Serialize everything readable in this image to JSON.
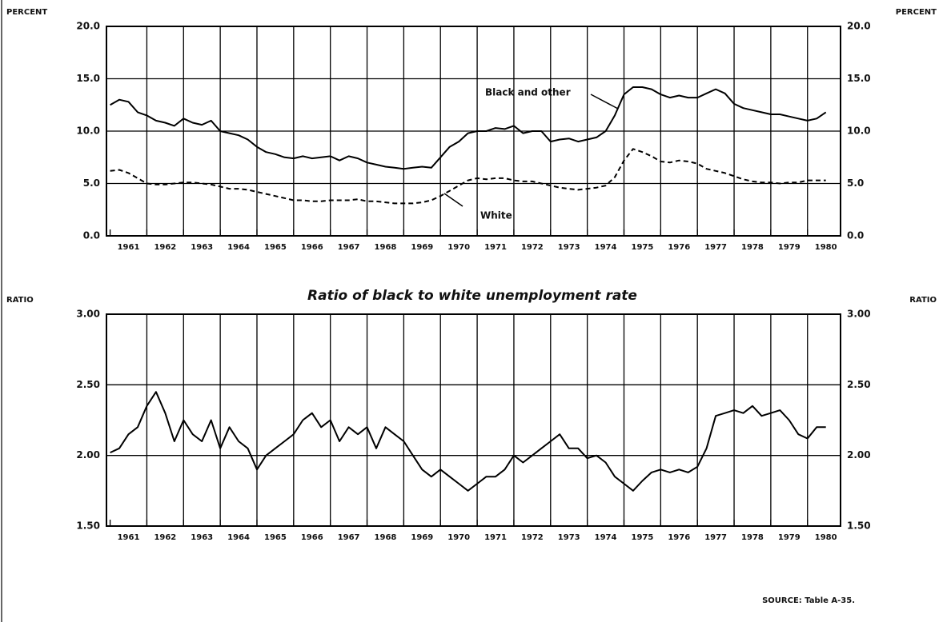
{
  "chart_data": [
    {
      "type": "line",
      "y_label": "PERCENT",
      "annotations": [
        "Black and other",
        "White"
      ],
      "xlim": [
        1960.9,
        1980.9
      ],
      "xticks": [
        {
          "value": 1961,
          "label": "1961"
        },
        {
          "value": 1962,
          "label": "1962"
        },
        {
          "value": 1963,
          "label": "1963"
        },
        {
          "value": 1964,
          "label": "1964"
        },
        {
          "value": 1965,
          "label": "1965"
        },
        {
          "value": 1966,
          "label": "1966"
        },
        {
          "value": 1967,
          "label": "1967"
        },
        {
          "value": 1968,
          "label": "1968"
        },
        {
          "value": 1969,
          "label": "1969"
        },
        {
          "value": 1970,
          "label": "1970"
        },
        {
          "value": 1971,
          "label": "1971"
        },
        {
          "value": 1972,
          "label": "1972"
        },
        {
          "value": 1973,
          "label": "1973"
        },
        {
          "value": 1974,
          "label": "1974"
        },
        {
          "value": 1975,
          "label": "1975"
        },
        {
          "value": 1976,
          "label": "1976"
        },
        {
          "value": 1977,
          "label": "1977"
        },
        {
          "value": 1978,
          "label": "1978"
        },
        {
          "value": 1979,
          "label": "1979"
        },
        {
          "value": 1980,
          "label": "1980"
        }
      ],
      "ylim": [
        0,
        20
      ],
      "yticks": [
        {
          "value": 0,
          "label": "0.0"
        },
        {
          "value": 5,
          "label": "5.0"
        },
        {
          "value": 10,
          "label": "10.0"
        },
        {
          "value": 15,
          "label": "15.0"
        },
        {
          "value": 20,
          "label": "20.0"
        }
      ],
      "grid": true,
      "x": [
        1961,
        1961.25,
        1961.5,
        1961.75,
        1962,
        1962.25,
        1962.5,
        1962.75,
        1963,
        1963.25,
        1963.5,
        1963.75,
        1964,
        1964.25,
        1964.5,
        1964.75,
        1965,
        1965.25,
        1965.5,
        1965.75,
        1966,
        1966.25,
        1966.5,
        1966.75,
        1967,
        1967.25,
        1967.5,
        1967.75,
        1968,
        1968.25,
        1968.5,
        1968.75,
        1969,
        1969.25,
        1969.5,
        1969.75,
        1970,
        1970.25,
        1970.5,
        1970.75,
        1971,
        1971.25,
        1971.5,
        1971.75,
        1972,
        1972.25,
        1972.5,
        1972.75,
        1973,
        1973.25,
        1973.5,
        1973.75,
        1974,
        1974.25,
        1974.5,
        1974.75,
        1975,
        1975.25,
        1975.5,
        1975.75,
        1976,
        1976.25,
        1976.5,
        1976.75,
        1977,
        1977.25,
        1977.5,
        1977.75,
        1978,
        1978.25,
        1978.5,
        1978.75,
        1979,
        1979.25,
        1979.5,
        1979.75,
        1980,
        1980.25,
        1980.5
      ],
      "series": [
        {
          "name": "Black and other",
          "color": "#000000",
          "line_style": "solid",
          "values": [
            12.5,
            13.0,
            12.8,
            11.8,
            11.5,
            11.0,
            10.8,
            10.5,
            11.2,
            10.8,
            10.6,
            11.0,
            10.0,
            9.8,
            9.6,
            9.2,
            8.5,
            8.0,
            7.8,
            7.5,
            7.4,
            7.6,
            7.4,
            7.5,
            7.6,
            7.2,
            7.6,
            7.4,
            7.0,
            6.8,
            6.6,
            6.5,
            6.4,
            6.5,
            6.6,
            6.5,
            7.5,
            8.5,
            9.0,
            9.8,
            10.0,
            10.0,
            10.3,
            10.2,
            10.5,
            9.8,
            10.0,
            10.0,
            9.0,
            9.2,
            9.3,
            9.0,
            9.2,
            9.4,
            10.0,
            11.5,
            13.5,
            14.2,
            14.2,
            14.0,
            13.5,
            13.2,
            13.4,
            13.2,
            13.2,
            13.6,
            14.0,
            13.6,
            12.6,
            12.2,
            12.0,
            11.8,
            11.6,
            11.6,
            11.4,
            11.2,
            11.0,
            11.2,
            11.8
          ]
        },
        {
          "name": "White",
          "color": "#000000",
          "line_style": "dashed",
          "values": [
            6.2,
            6.3,
            6.0,
            5.5,
            5.0,
            4.9,
            4.9,
            5.0,
            5.1,
            5.1,
            5.0,
            4.9,
            4.7,
            4.5,
            4.5,
            4.4,
            4.2,
            4.0,
            3.8,
            3.6,
            3.4,
            3.4,
            3.3,
            3.3,
            3.4,
            3.4,
            3.4,
            3.5,
            3.3,
            3.3,
            3.2,
            3.1,
            3.1,
            3.1,
            3.2,
            3.4,
            3.8,
            4.3,
            4.8,
            5.3,
            5.5,
            5.4,
            5.5,
            5.5,
            5.3,
            5.2,
            5.2,
            5.0,
            4.8,
            4.6,
            4.5,
            4.4,
            4.5,
            4.6,
            4.8,
            5.6,
            7.2,
            8.3,
            8.0,
            7.6,
            7.1,
            7.0,
            7.2,
            7.1,
            6.9,
            6.4,
            6.2,
            6.0,
            5.7,
            5.4,
            5.2,
            5.1,
            5.1,
            5.0,
            5.1,
            5.1,
            5.3,
            5.3,
            5.3
          ]
        }
      ]
    },
    {
      "type": "line",
      "title": "Ratio of black to white unemployment rate",
      "y_label": "RATIO",
      "source": "SOURCE: Table A-35.",
      "xlim": [
        1960.9,
        1980.9
      ],
      "xticks": [
        {
          "value": 1961,
          "label": "1961"
        },
        {
          "value": 1962,
          "label": "1962"
        },
        {
          "value": 1963,
          "label": "1963"
        },
        {
          "value": 1964,
          "label": "1964"
        },
        {
          "value": 1965,
          "label": "1965"
        },
        {
          "value": 1966,
          "label": "1966"
        },
        {
          "value": 1967,
          "label": "1967"
        },
        {
          "value": 1968,
          "label": "1968"
        },
        {
          "value": 1969,
          "label": "1969"
        },
        {
          "value": 1970,
          "label": "1970"
        },
        {
          "value": 1971,
          "label": "1971"
        },
        {
          "value": 1972,
          "label": "1972"
        },
        {
          "value": 1973,
          "label": "1973"
        },
        {
          "value": 1974,
          "label": "1974"
        },
        {
          "value": 1975,
          "label": "1975"
        },
        {
          "value": 1976,
          "label": "1976"
        },
        {
          "value": 1977,
          "label": "1977"
        },
        {
          "value": 1978,
          "label": "1978"
        },
        {
          "value": 1979,
          "label": "1979"
        },
        {
          "value": 1980,
          "label": "1980"
        }
      ],
      "ylim": [
        1.5,
        3.0
      ],
      "yticks": [
        {
          "value": 1.5,
          "label": "1.50"
        },
        {
          "value": 2.0,
          "label": "2.00"
        },
        {
          "value": 2.5,
          "label": "2.50"
        },
        {
          "value": 3.0,
          "label": "3.00"
        }
      ],
      "grid": true,
      "x": [
        1961,
        1961.25,
        1961.5,
        1961.75,
        1962,
        1962.25,
        1962.5,
        1962.75,
        1963,
        1963.25,
        1963.5,
        1963.75,
        1964,
        1964.25,
        1964.5,
        1964.75,
        1965,
        1965.25,
        1965.5,
        1965.75,
        1966,
        1966.25,
        1966.5,
        1966.75,
        1967,
        1967.25,
        1967.5,
        1967.75,
        1968,
        1968.25,
        1968.5,
        1968.75,
        1969,
        1969.25,
        1969.5,
        1969.75,
        1970,
        1970.25,
        1970.5,
        1970.75,
        1971,
        1971.25,
        1971.5,
        1971.75,
        1972,
        1972.25,
        1972.5,
        1972.75,
        1973,
        1973.25,
        1973.5,
        1973.75,
        1974,
        1974.25,
        1974.5,
        1974.75,
        1975,
        1975.25,
        1975.5,
        1975.75,
        1976,
        1976.25,
        1976.5,
        1976.75,
        1977,
        1977.25,
        1977.5,
        1977.75,
        1978,
        1978.25,
        1978.5,
        1978.75,
        1979,
        1979.25,
        1979.5,
        1979.75,
        1980,
        1980.25,
        1980.5
      ],
      "series": [
        {
          "color": "#000000",
          "line_style": "solid",
          "values": [
            2.02,
            2.05,
            2.15,
            2.2,
            2.35,
            2.45,
            2.3,
            2.1,
            2.25,
            2.15,
            2.1,
            2.25,
            2.05,
            2.2,
            2.1,
            2.05,
            1.9,
            2.0,
            2.05,
            2.1,
            2.15,
            2.25,
            2.3,
            2.2,
            2.25,
            2.1,
            2.2,
            2.15,
            2.2,
            2.05,
            2.2,
            2.15,
            2.1,
            2.0,
            1.9,
            1.85,
            1.9,
            1.85,
            1.8,
            1.75,
            1.8,
            1.85,
            1.85,
            1.9,
            2.0,
            1.95,
            2.0,
            2.05,
            2.1,
            2.15,
            2.05,
            2.05,
            1.98,
            2.0,
            1.95,
            1.85,
            1.8,
            1.75,
            1.82,
            1.88,
            1.9,
            1.88,
            1.9,
            1.88,
            1.92,
            2.05,
            2.28,
            2.3,
            2.32,
            2.3,
            2.35,
            2.28,
            2.3,
            2.32,
            2.25,
            2.15,
            2.12,
            2.2,
            2.2
          ]
        }
      ]
    }
  ]
}
